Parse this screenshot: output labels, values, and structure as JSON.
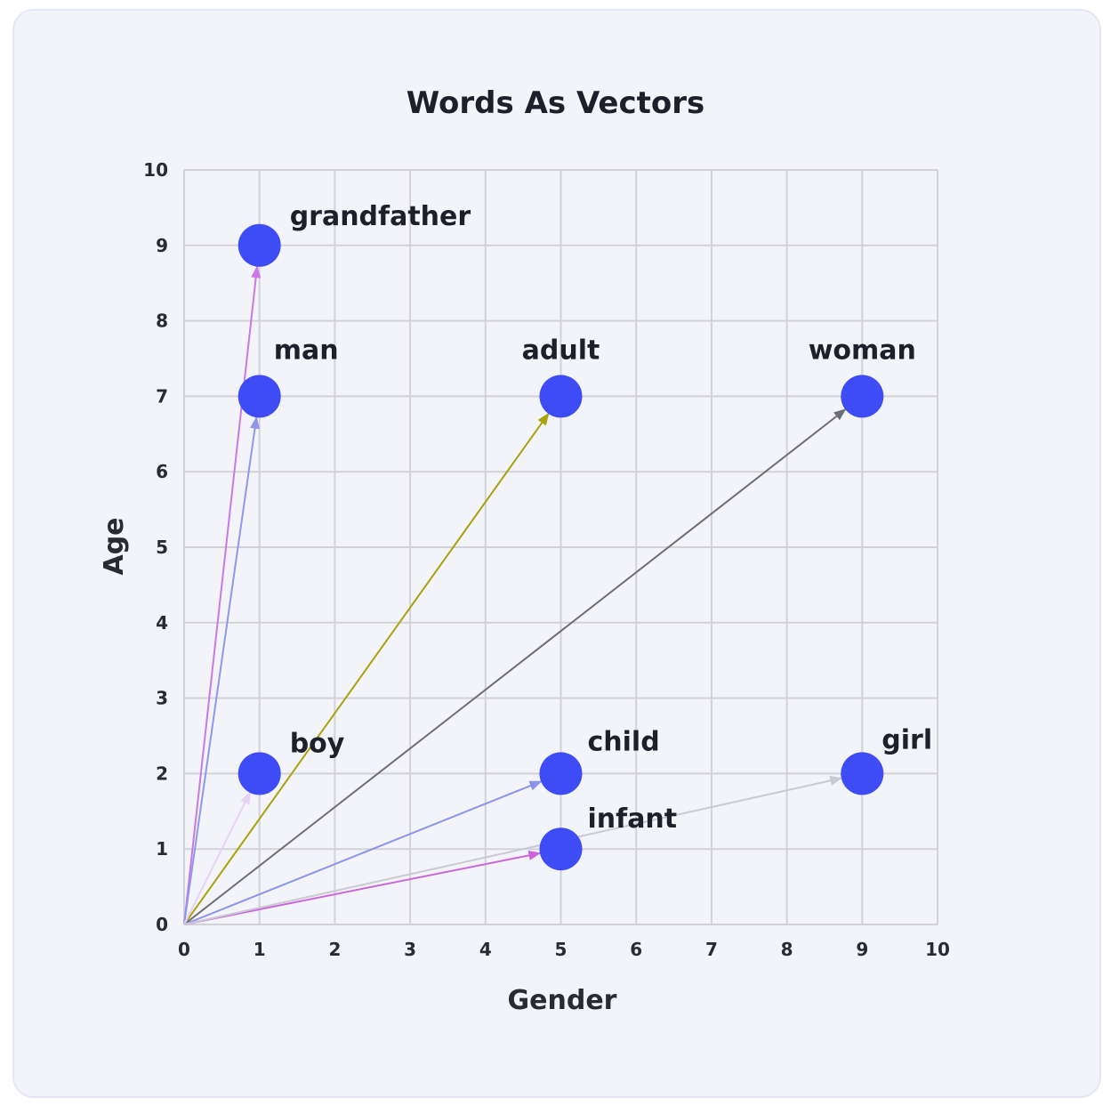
{
  "chart_data": {
    "type": "scatter",
    "title": "Words As Vectors",
    "xlabel": "Gender",
    "ylabel": "Age",
    "xlim": [
      0,
      10
    ],
    "ylim": [
      0,
      10
    ],
    "xticks": [
      0,
      1,
      2,
      3,
      4,
      5,
      6,
      7,
      8,
      9,
      10
    ],
    "yticks": [
      0,
      1,
      2,
      3,
      4,
      5,
      6,
      7,
      8,
      9,
      10
    ],
    "grid": true,
    "point_color": "#3d4cf5",
    "points": [
      {
        "label": "grandfather",
        "x": 1,
        "y": 9,
        "arrow_color": "#cc77e6"
      },
      {
        "label": "man",
        "x": 1,
        "y": 7,
        "arrow_color": "#8f97ea"
      },
      {
        "label": "adult",
        "x": 5,
        "y": 7,
        "arrow_color": "#a9a20a"
      },
      {
        "label": "woman",
        "x": 9,
        "y": 7,
        "arrow_color": "#6e6e72"
      },
      {
        "label": "boy",
        "x": 1,
        "y": 2,
        "arrow_color": "#e6d2f7"
      },
      {
        "label": "child",
        "x": 5,
        "y": 2,
        "arrow_color": "#8a92ea"
      },
      {
        "label": "infant",
        "x": 5,
        "y": 1,
        "arrow_color": "#cc66dd"
      },
      {
        "label": "girl",
        "x": 9,
        "y": 2,
        "arrow_color": "#c9c9d4"
      }
    ]
  }
}
